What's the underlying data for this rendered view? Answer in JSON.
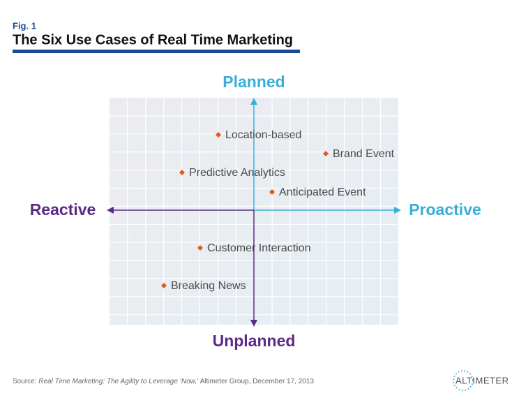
{
  "header": {
    "fig": "Fig. 1",
    "title": "The Six Use Cases of Real Time Marketing"
  },
  "axes": {
    "top": "Planned",
    "bottom": "Unplanned",
    "left": "Reactive",
    "right": "Proactive"
  },
  "nodes": [
    {
      "label": "Location-based"
    },
    {
      "label": "Brand Event"
    },
    {
      "label": "Predictive Analytics"
    },
    {
      "label": "Anticipated Event"
    },
    {
      "label": "Customer Interaction"
    },
    {
      "label": "Breaking News"
    }
  ],
  "source": {
    "prefix": "Source: ",
    "work": "Real Time Marketing: The Agility to Leverage ‘Now,’",
    "rest": " Altimeter Group, December 17, 2013"
  },
  "logo": "ALTIMETER"
}
